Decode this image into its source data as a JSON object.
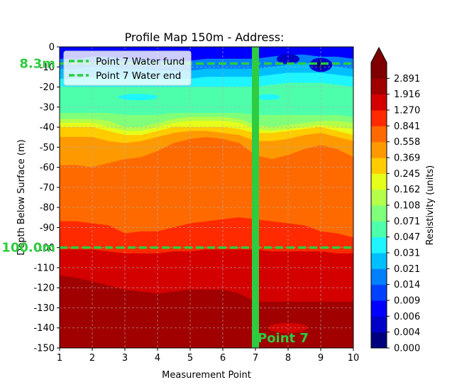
{
  "chart_data": {
    "type": "heatmap",
    "title": "Profile Map 150m - Address:",
    "xlabel": "Measurement Point",
    "ylabel": "Depth Below Surface (m)",
    "xlim": [
      1,
      10
    ],
    "ylim": [
      -150,
      0
    ],
    "x_ticks": [
      "1",
      "2",
      "3",
      "4",
      "5",
      "6",
      "7",
      "8",
      "9",
      "10"
    ],
    "y_ticks": [
      "0",
      "-10",
      "-20",
      "-30",
      "-40",
      "-50",
      "-60",
      "-70",
      "-80",
      "-90",
      "-100",
      "-110",
      "-120",
      "-130",
      "-140",
      "-150"
    ],
    "grid": true,
    "colorbar": {
      "label": "Resistivity (units)",
      "extend": "max",
      "ticks": [
        "0.000",
        "0.004",
        "0.006",
        "0.009",
        "0.014",
        "0.021",
        "0.031",
        "0.047",
        "0.071",
        "0.108",
        "0.162",
        "0.245",
        "0.369",
        "0.558",
        "0.841",
        "1.270",
        "1.916",
        "2.891"
      ],
      "colors": [
        "#00007f",
        "#0000c8",
        "#0000ff",
        "#0040ff",
        "#0080ff",
        "#00bfff",
        "#1ef5ff",
        "#4dffaa",
        "#80ff7a",
        "#b3ff4a",
        "#e6ff1a",
        "#ffcc00",
        "#ff9900",
        "#ff6a00",
        "#ff2a00",
        "#d40000",
        "#a00000",
        "#7f0000"
      ]
    },
    "bands": [
      {
        "x": [
          1,
          1.5,
          2,
          2.5,
          3,
          3.5,
          4,
          4.5,
          5,
          5.5,
          6,
          6.5,
          7,
          7.5,
          8,
          8.5,
          9,
          9.5,
          10
        ],
        "top": [
          0,
          0,
          0,
          0,
          0,
          0,
          0,
          0,
          0,
          0,
          0,
          0,
          0,
          0,
          0,
          0,
          0,
          0,
          0
        ],
        "bottom": [
          -6,
          -6,
          -5,
          -5,
          -6,
          -6,
          -7,
          -7,
          -7,
          -6,
          -6,
          -6,
          -6,
          -5,
          -4,
          -4,
          -5,
          -5,
          -6
        ],
        "level": 2
      },
      {
        "x": [
          1,
          1.5,
          2,
          2.5,
          3,
          3.5,
          4,
          4.5,
          5,
          5.5,
          6,
          6.5,
          7,
          7.5,
          8,
          8.5,
          9,
          9.5,
          10
        ],
        "top": [
          -6,
          -6,
          -5,
          -5,
          -6,
          -6,
          -7,
          -7,
          -7,
          -6,
          -6,
          -6,
          -6,
          -5,
          -4,
          -4,
          -5,
          -5,
          -6
        ],
        "bottom": [
          -11,
          -11,
          -10,
          -10,
          -11,
          -11,
          -12,
          -12,
          -12,
          -11,
          -11,
          -11,
          -11,
          -10,
          -9,
          -8,
          -9,
          -10,
          -11
        ],
        "level": 4
      },
      {
        "x": [
          1,
          1.5,
          2,
          2.5,
          3,
          3.5,
          4,
          4.5,
          5,
          5.5,
          6,
          6.5,
          7,
          7.5,
          8,
          8.5,
          9,
          9.5,
          10
        ],
        "top": [
          -11,
          -11,
          -10,
          -10,
          -11,
          -11,
          -12,
          -12,
          -12,
          -11,
          -11,
          -11,
          -11,
          -10,
          -9,
          -8,
          -9,
          -10,
          -11
        ],
        "bottom": [
          -16,
          -16,
          -15,
          -15,
          -15,
          -15,
          -16,
          -16,
          -16,
          -15,
          -15,
          -15,
          -15,
          -14,
          -13,
          -13,
          -13,
          -14,
          -15
        ],
        "level": 5
      },
      {
        "x": [
          1,
          1.5,
          2,
          2.5,
          3,
          3.5,
          4,
          4.5,
          5,
          5.5,
          6,
          6.5,
          7,
          7.5,
          8,
          8.5,
          9,
          9.5,
          10
        ],
        "top": [
          -16,
          -16,
          -15,
          -15,
          -15,
          -15,
          -16,
          -16,
          -16,
          -15,
          -15,
          -15,
          -15,
          -14,
          -13,
          -13,
          -13,
          -14,
          -15
        ],
        "bottom": [
          -20,
          -20,
          -20,
          -20,
          -20,
          -20,
          -20,
          -20,
          -20,
          -20,
          -20,
          -20,
          -20,
          -19,
          -18,
          -18,
          -18,
          -19,
          -20
        ],
        "level": 6
      },
      {
        "x": [
          1,
          1.5,
          2,
          2.5,
          3,
          3.5,
          4,
          4.5,
          5,
          5.5,
          6,
          6.5,
          7,
          7.5,
          8,
          8.5,
          9,
          9.5,
          10
        ],
        "top": [
          -20,
          -20,
          -20,
          -20,
          -20,
          -20,
          -20,
          -20,
          -20,
          -20,
          -20,
          -20,
          -20,
          -19,
          -18,
          -18,
          -18,
          -19,
          -20
        ],
        "bottom": [
          -33,
          -33,
          -33,
          -33,
          -34,
          -34,
          -34,
          -33,
          -33,
          -33,
          -33,
          -33,
          -34,
          -34,
          -34,
          -34,
          -34,
          -34,
          -35
        ],
        "level": 7
      },
      {
        "x": [
          1,
          1.5,
          2,
          2.5,
          3,
          3.5,
          4,
          4.5,
          5,
          5.5,
          6,
          6.5,
          7,
          7.5,
          8,
          8.5,
          9,
          9.5,
          10
        ],
        "top": [
          -33,
          -33,
          -33,
          -33,
          -34,
          -34,
          -34,
          -33,
          -33,
          -33,
          -33,
          -33,
          -34,
          -34,
          -34,
          -34,
          -34,
          -34,
          -35
        ],
        "bottom": [
          -36,
          -36,
          -36,
          -37,
          -40,
          -40,
          -38,
          -36,
          -35,
          -35,
          -35,
          -36,
          -39,
          -40,
          -39,
          -38,
          -37,
          -37,
          -38
        ],
        "level": 8
      },
      {
        "x": [
          1,
          1.5,
          2,
          2.5,
          3,
          3.5,
          4,
          4.5,
          5,
          5.5,
          6,
          6.5,
          7,
          7.5,
          8,
          8.5,
          9,
          9.5,
          10
        ],
        "top": [
          -36,
          -36,
          -36,
          -37,
          -40,
          -40,
          -38,
          -36,
          -35,
          -35,
          -35,
          -36,
          -39,
          -40,
          -39,
          -38,
          -37,
          -37,
          -38
        ],
        "bottom": [
          -38,
          -38,
          -38,
          -40,
          -42,
          -42,
          -40,
          -38,
          -37,
          -37,
          -37,
          -38,
          -41,
          -42,
          -41,
          -40,
          -39,
          -40,
          -41
        ],
        "level": 9
      },
      {
        "x": [
          1,
          1.5,
          2,
          2.5,
          3,
          3.5,
          4,
          4.5,
          5,
          5.5,
          6,
          6.5,
          7,
          7.5,
          8,
          8.5,
          9,
          9.5,
          10
        ],
        "top": [
          -38,
          -38,
          -38,
          -40,
          -42,
          -42,
          -40,
          -38,
          -37,
          -37,
          -37,
          -38,
          -41,
          -42,
          -41,
          -40,
          -39,
          -40,
          -41
        ],
        "bottom": [
          -40,
          -40,
          -40,
          -42,
          -44,
          -44,
          -42,
          -40,
          -40,
          -40,
          -40,
          -41,
          -43,
          -43,
          -42,
          -41,
          -40,
          -42,
          -44
        ],
        "level": 10
      },
      {
        "x": [
          1,
          1.5,
          2,
          2.5,
          3,
          3.5,
          4,
          4.5,
          5,
          5.5,
          6,
          6.5,
          7,
          7.5,
          8,
          8.5,
          9,
          9.5,
          10
        ],
        "top": [
          -40,
          -40,
          -40,
          -42,
          -44,
          -44,
          -42,
          -40,
          -40,
          -40,
          -40,
          -41,
          -43,
          -43,
          -42,
          -41,
          -40,
          -42,
          -44
        ],
        "bottom": [
          -45,
          -45,
          -45,
          -47,
          -48,
          -47,
          -45,
          -43,
          -42,
          -42,
          -43,
          -44,
          -47,
          -47,
          -46,
          -44,
          -43,
          -45,
          -47
        ],
        "level": 11
      },
      {
        "x": [
          1,
          1.5,
          2,
          2.5,
          3,
          3.5,
          4,
          4.5,
          5,
          5.5,
          6,
          6.5,
          7,
          7.5,
          8,
          8.5,
          9,
          9.5,
          10
        ],
        "top": [
          -45,
          -45,
          -45,
          -47,
          -48,
          -47,
          -45,
          -43,
          -42,
          -42,
          -43,
          -44,
          -47,
          -47,
          -46,
          -44,
          -43,
          -45,
          -47
        ],
        "bottom": [
          -59,
          -59,
          -60,
          -58,
          -56,
          -55,
          -52,
          -48,
          -46,
          -45,
          -46,
          -48,
          -54,
          -56,
          -54,
          -51,
          -49,
          -51,
          -55
        ],
        "level": 12
      },
      {
        "x": [
          1,
          1.5,
          2,
          2.5,
          3,
          3.5,
          4,
          4.5,
          5,
          5.5,
          6,
          6.5,
          7,
          7.5,
          8,
          8.5,
          9,
          9.5,
          10
        ],
        "top": [
          -59,
          -59,
          -60,
          -58,
          -56,
          -55,
          -52,
          -48,
          -46,
          -45,
          -46,
          -48,
          -54,
          -56,
          -54,
          -51,
          -49,
          -51,
          -55
        ],
        "bottom": [
          -87,
          -87,
          -88,
          -89,
          -93,
          -92,
          -92,
          -90,
          -88,
          -87,
          -86,
          -85,
          -86,
          -87,
          -88,
          -89,
          -92,
          -93,
          -95
        ],
        "level": 13
      },
      {
        "x": [
          1,
          1.5,
          2,
          2.5,
          3,
          3.5,
          4,
          4.5,
          5,
          5.5,
          6,
          6.5,
          7,
          7.5,
          8,
          8.5,
          9,
          9.5,
          10
        ],
        "top": [
          -87,
          -87,
          -88,
          -89,
          -93,
          -92,
          -92,
          -90,
          -88,
          -87,
          -86,
          -85,
          -86,
          -87,
          -88,
          -89,
          -92,
          -93,
          -95
        ],
        "bottom": [
          -101,
          -101,
          -101,
          -102,
          -103,
          -103,
          -103,
          -102,
          -102,
          -101,
          -101,
          -101,
          -101,
          -102,
          -102,
          -102,
          -102,
          -103,
          -103
        ],
        "level": 14
      },
      {
        "x": [
          1,
          1.5,
          2,
          2.5,
          3,
          3.5,
          4,
          4.5,
          5,
          5.5,
          6,
          6.5,
          7,
          7.5,
          8,
          8.5,
          9,
          9.5,
          10
        ],
        "top": [
          -101,
          -101,
          -101,
          -102,
          -103,
          -103,
          -103,
          -102,
          -102,
          -101,
          -101,
          -101,
          -101,
          -102,
          -102,
          -102,
          -102,
          -103,
          -103
        ],
        "bottom": [
          -114,
          -115,
          -117,
          -119,
          -121,
          -122,
          -123,
          -122,
          -121,
          -121,
          -121,
          -123,
          -127,
          -127,
          -127,
          -127,
          -127,
          -127,
          -127
        ],
        "level": 15
      },
      {
        "x": [
          1,
          1.5,
          2,
          2.5,
          3,
          3.5,
          4,
          4.5,
          5,
          5.5,
          6,
          6.5,
          7,
          7.5,
          8,
          8.5,
          9,
          9.5,
          10
        ],
        "top": [
          -114,
          -115,
          -117,
          -119,
          -121,
          -122,
          -123,
          -122,
          -121,
          -121,
          -121,
          -123,
          -127,
          -127,
          -127,
          -127,
          -127,
          -127,
          -127
        ],
        "bottom": [
          -150,
          -150,
          -150,
          -150,
          -150,
          -150,
          -150,
          -150,
          -150,
          -150,
          -150,
          -150,
          -150,
          -150,
          -150,
          -150,
          -150,
          -150,
          -150
        ],
        "level": 16
      }
    ],
    "blobs": [
      {
        "cx": 9.0,
        "cy": -9,
        "rx": 0.35,
        "ry": 3.5,
        "level": 1
      },
      {
        "cx": 9.0,
        "cy": -9,
        "rx": 0.18,
        "ry": 1.8,
        "level": 0
      },
      {
        "cx": 8.0,
        "cy": -6,
        "rx": 0.35,
        "ry": 2.5,
        "level": 1
      },
      {
        "cx": 3.4,
        "cy": -25,
        "rx": 0.6,
        "ry": 1.6,
        "level": 6
      },
      {
        "cx": 7.4,
        "cy": -25,
        "rx": 0.35,
        "ry": 1.4,
        "level": 6
      },
      {
        "cx": 8.0,
        "cy": -140,
        "rx": 0.6,
        "ry": 2.5,
        "level": 15
      }
    ],
    "vertical_marker": {
      "x": 7,
      "label": "Point 7",
      "color": "#2ecc40"
    },
    "horizontal_lines": [
      {
        "y": -8.3,
        "label": "8.3m",
        "legend": "Point 7 Water fund",
        "color": "#2ecc40"
      },
      {
        "y": -100.0,
        "label": "100.0m",
        "legend": "Point 7 Water end",
        "color": "#2ecc40"
      }
    ]
  }
}
